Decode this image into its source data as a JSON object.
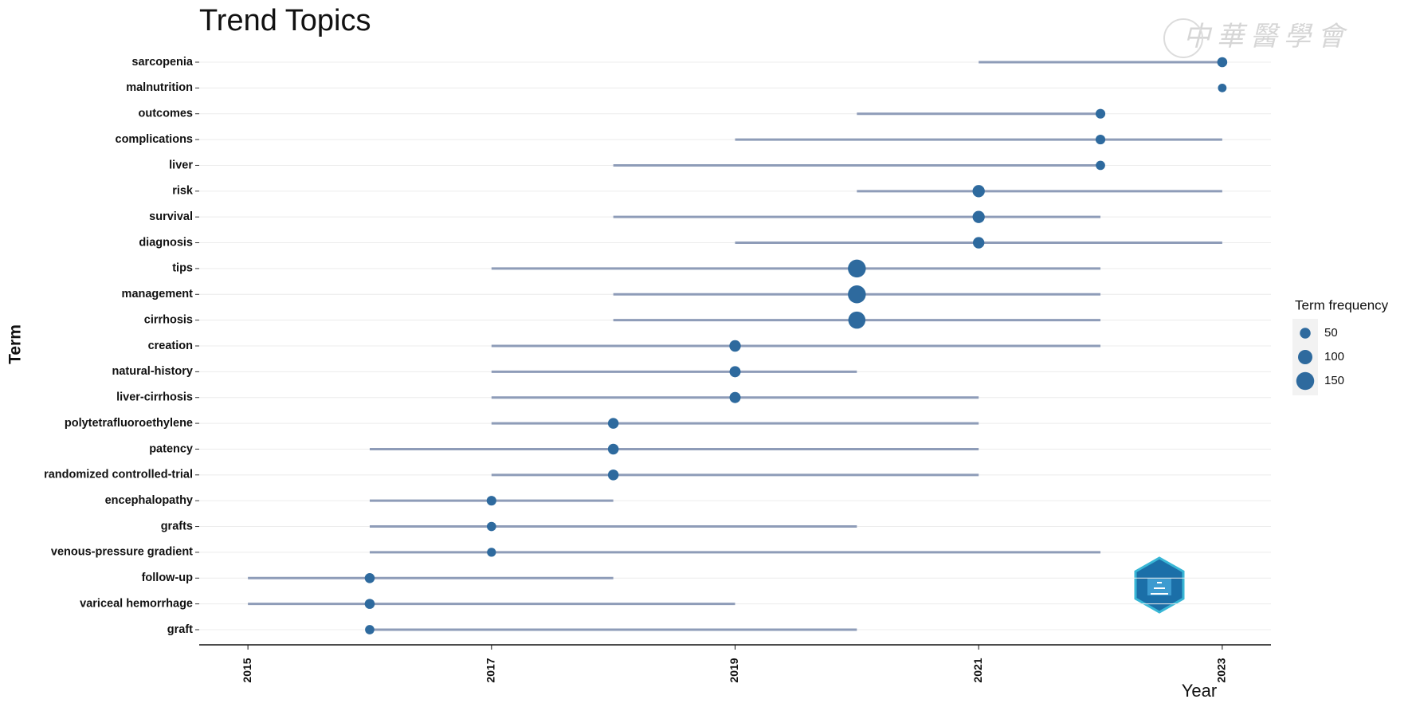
{
  "chart_data": {
    "type": "trend",
    "title": "Trend Topics",
    "watermark": "中華醫學會",
    "x_label": "Year",
    "y_label": "Term",
    "legend_title": "Term frequency",
    "legend_sizes": [
      50,
      100,
      150
    ],
    "categories": [
      "sarcopenia",
      "malnutrition",
      "outcomes",
      "complications",
      "liver",
      "risk",
      "survival",
      "diagnosis",
      "tips",
      "management",
      "cirrhosis",
      "creation",
      "natural-history",
      "liver-cirrhosis",
      "polytetrafluoroethylene",
      "patency",
      "randomized controlled-trial",
      "encephalopathy",
      "grafts",
      "venous-pressure gradient",
      "follow-up",
      "variceal hemorrhage",
      "graft"
    ],
    "start": [
      2021,
      2023,
      2020,
      2019,
      2018,
      2020,
      2018,
      2019,
      2017,
      2018,
      2018,
      2017,
      2017,
      2017,
      2017,
      2016,
      2017,
      2016,
      2016,
      2016,
      2015,
      2015,
      2016
    ],
    "end": [
      2023,
      2023,
      2022,
      2023,
      2022,
      2023,
      2022,
      2023,
      2022,
      2022,
      2022,
      2022,
      2020,
      2021,
      2021,
      2021,
      2021,
      2018,
      2020,
      2022,
      2018,
      2019,
      2020
    ],
    "median": [
      2023,
      2023,
      2022,
      2022,
      2022,
      2021,
      2021,
      2021,
      2020,
      2020,
      2020,
      2019,
      2019,
      2019,
      2018,
      2018,
      2018,
      2017,
      2017,
      2017,
      2016,
      2016,
      2016
    ],
    "frequency": [
      40,
      20,
      35,
      35,
      30,
      70,
      70,
      60,
      150,
      150,
      140,
      60,
      55,
      55,
      50,
      50,
      50,
      35,
      30,
      25,
      40,
      40,
      30
    ],
    "point_color": "#2e6a9e",
    "line_color": "#8e9cb8",
    "xlim": [
      2014.6,
      2023.4
    ],
    "xticks": [
      2015,
      2017,
      2019,
      2021,
      2023
    ]
  }
}
